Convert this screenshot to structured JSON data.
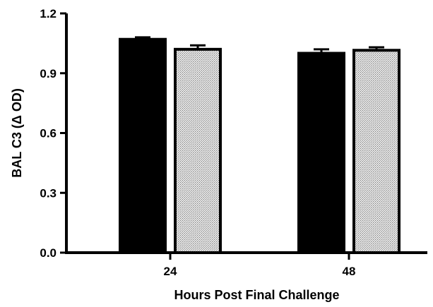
{
  "chart_data": {
    "type": "bar",
    "title": "",
    "xlabel": "Hours Post Final Challenge",
    "ylabel": "BAL C3 (Δ OD)",
    "categories": [
      "24",
      "48"
    ],
    "ylim": [
      0.0,
      1.2
    ],
    "yticks": [
      "0.0",
      "0.3",
      "0.6",
      "0.9",
      "1.2"
    ],
    "ytick_values": [
      0.0,
      0.3,
      0.6,
      0.9,
      1.2
    ],
    "grid": false,
    "legend": "none",
    "series": [
      {
        "values": [
          1.07,
          1.0
        ],
        "errors": [
          0.01,
          0.02
        ],
        "color": "#000000",
        "pattern": "solid"
      },
      {
        "values": [
          1.02,
          1.015
        ],
        "errors": [
          0.02,
          0.015
        ],
        "color": "#d6d6d6",
        "pattern": "stippled"
      }
    ]
  }
}
